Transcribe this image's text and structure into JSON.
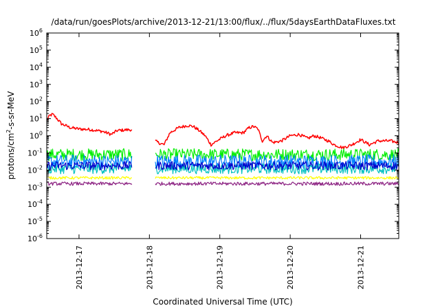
{
  "chart_data": {
    "type": "line",
    "title": "/data/run/goesPlots/archive/2013-12-21/13:00/flux/../flux/5daysEarthDataFluxes.txt",
    "xlabel": "Coordinated Universal Time (UTC)",
    "ylabel": {
      "base": "protons/cm",
      "sup": "2",
      "rest": "-s-sr-MeV"
    },
    "y_scale": "log",
    "ylim": [
      1e-06,
      1000000.0
    ],
    "y_ticks": [
      {
        "value": 1e-06,
        "exp": "-6"
      },
      {
        "value": 1e-05,
        "exp": "-5"
      },
      {
        "value": 0.0001,
        "exp": "-4"
      },
      {
        "value": 0.001,
        "exp": "-3"
      },
      {
        "value": 0.01,
        "exp": "-2"
      },
      {
        "value": 0.1,
        "exp": "-1"
      },
      {
        "value": 1,
        "exp": "0"
      },
      {
        "value": 10,
        "exp": "1"
      },
      {
        "value": 100,
        "exp": "2"
      },
      {
        "value": 1000,
        "exp": "3"
      },
      {
        "value": 10000,
        "exp": "4"
      },
      {
        "value": 100000,
        "exp": "5"
      },
      {
        "value": 1000000,
        "exp": "6"
      }
    ],
    "y_tick_base": "10",
    "xlim": [
      "2013-12-16 13:00",
      "2013-12-21 13:00"
    ],
    "x_ticks": [
      {
        "label": "2013-12-17",
        "value": "2013-12-17 00:00"
      },
      {
        "label": "2013-12-18",
        "value": "2013-12-18 00:00"
      },
      {
        "label": "2013-12-19",
        "value": "2013-12-19 00:00"
      },
      {
        "label": "2013-12-20",
        "value": "2013-12-20 00:00"
      },
      {
        "label": "2013-12-21",
        "value": "2013-12-21 00:00"
      }
    ],
    "grid": false,
    "legend": "none",
    "data_gap": [
      "2013-12-17 18:00",
      "2013-12-18 02:00"
    ],
    "series": [
      {
        "color": "#ff0000",
        "noise": 0.09,
        "points": [
          [
            "2013-12-16 13:00",
            8
          ],
          [
            "2013-12-16 14:00",
            15
          ],
          [
            "2013-12-16 15:00",
            18
          ],
          [
            "2013-12-16 16:30",
            10
          ],
          [
            "2013-12-16 18:00",
            5
          ],
          [
            "2013-12-16 21:00",
            3
          ],
          [
            "2013-12-17 00:00",
            2.5
          ],
          [
            "2013-12-17 04:00",
            2.3
          ],
          [
            "2013-12-17 08:00",
            1.8
          ],
          [
            "2013-12-17 11:00",
            1.2
          ],
          [
            "2013-12-17 13:00",
            2
          ],
          [
            "2013-12-17 16:00",
            2.2
          ],
          [
            "2013-12-17 17:30",
            2.3
          ],
          [
            "2013-12-18 02:00",
            0.5
          ],
          [
            "2013-12-18 03:00",
            0.4
          ],
          [
            "2013-12-18 05:00",
            0.3
          ],
          [
            "2013-12-18 07:00",
            1.5
          ],
          [
            "2013-12-18 10:00",
            3
          ],
          [
            "2013-12-18 13:00",
            4
          ],
          [
            "2013-12-18 15:00",
            3.5
          ],
          [
            "2013-12-18 17:00",
            2
          ],
          [
            "2013-12-18 19:00",
            1
          ],
          [
            "2013-12-18 21:00",
            0.3
          ],
          [
            "2013-12-18 23:00",
            0.5
          ],
          [
            "2013-12-19 02:00",
            1
          ],
          [
            "2013-12-19 05:00",
            1.5
          ],
          [
            "2013-12-19 08:00",
            1.5
          ],
          [
            "2013-12-19 10:00",
            3
          ],
          [
            "2013-12-19 11:30",
            3.5
          ],
          [
            "2013-12-19 13:00",
            2.5
          ],
          [
            "2013-12-19 14:30",
            0.5
          ],
          [
            "2013-12-19 16:00",
            1
          ],
          [
            "2013-12-19 18:00",
            0.4
          ],
          [
            "2013-12-19 21:00",
            0.5
          ],
          [
            "2013-12-20 00:00",
            1
          ],
          [
            "2013-12-20 03:00",
            1.2
          ],
          [
            "2013-12-20 06:00",
            0.7
          ],
          [
            "2013-12-20 08:00",
            1
          ],
          [
            "2013-12-20 10:00",
            0.8
          ],
          [
            "2013-12-20 13:00",
            0.5
          ],
          [
            "2013-12-20 15:00",
            0.3
          ],
          [
            "2013-12-20 18:00",
            0.2
          ],
          [
            "2013-12-20 21:00",
            0.3
          ],
          [
            "2013-12-21 00:00",
            0.6
          ],
          [
            "2013-12-21 03:00",
            0.3
          ],
          [
            "2013-12-21 06:00",
            0.5
          ],
          [
            "2013-12-21 10:00",
            0.5
          ],
          [
            "2013-12-21 13:00",
            0.4
          ]
        ]
      },
      {
        "color": "#00ee00",
        "noise": 0.35,
        "points": [
          [
            "2013-12-16 13:00",
            0.08
          ],
          [
            "2013-12-21 13:00",
            0.08
          ]
        ]
      },
      {
        "color": "#0080ff",
        "noise": 0.42,
        "points": [
          [
            "2013-12-16 13:00",
            0.03
          ],
          [
            "2013-12-21 13:00",
            0.03
          ]
        ]
      },
      {
        "color": "#00c0c0",
        "noise": 0.3,
        "points": [
          [
            "2013-12-16 13:00",
            0.012
          ],
          [
            "2013-12-21 13:00",
            0.012
          ]
        ]
      },
      {
        "color": "#0000cc",
        "noise": 0.25,
        "points": [
          [
            "2013-12-16 13:00",
            0.018
          ],
          [
            "2013-12-21 13:00",
            0.018
          ]
        ]
      },
      {
        "color": "#ffff00",
        "noise": 0.08,
        "points": [
          [
            "2013-12-16 13:00",
            0.0035
          ],
          [
            "2013-12-21 13:00",
            0.0035
          ]
        ]
      },
      {
        "color": "#8b2081",
        "noise": 0.1,
        "points": [
          [
            "2013-12-16 13:00",
            0.0016
          ],
          [
            "2013-12-21 13:00",
            0.0016
          ]
        ]
      }
    ]
  }
}
